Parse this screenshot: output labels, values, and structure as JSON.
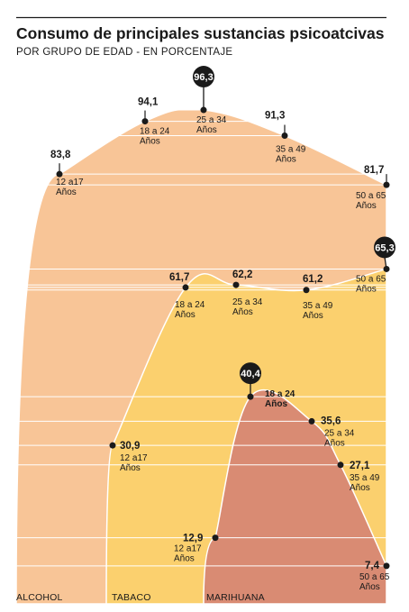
{
  "chart_data": {
    "type": "area",
    "title": "Consumo de principales sustancias psicoatcivas",
    "subtitle": "POR GRUPO DE EDAD - EN PORCENTAJE",
    "series": [
      {
        "name": "ALCOHOL",
        "color": "#f8c597",
        "points": [
          {
            "age": "12 a17",
            "age_line2": "Años",
            "value": 83.8,
            "value_label": "83,8"
          },
          {
            "age": "18 a 24",
            "age_line2": "Años",
            "value": 94.1,
            "value_label": "94,1"
          },
          {
            "age": "25 a 34",
            "age_line2": "Años",
            "value": 96.3,
            "value_label": "96,3",
            "highlight": true
          },
          {
            "age": "35 a 49",
            "age_line2": "Años",
            "value": 91.3,
            "value_label": "91,3"
          },
          {
            "age": "50 a 65",
            "age_line2": "Años",
            "value": 81.7,
            "value_label": "81,7"
          }
        ]
      },
      {
        "name": "TABACO",
        "color": "#fbd06e",
        "points": [
          {
            "age": "12 a17",
            "age_line2": "Años",
            "value": 30.9,
            "value_label": "30,9"
          },
          {
            "age": "18 a 24",
            "age_line2": "Años",
            "value": 61.7,
            "value_label": "61,7"
          },
          {
            "age": "25 a 34",
            "age_line2": "Años",
            "value": 62.2,
            "value_label": "62,2"
          },
          {
            "age": "35 a 49",
            "age_line2": "Años",
            "value": 61.2,
            "value_label": "61,2"
          },
          {
            "age": "50 a 65",
            "age_line2": "Años",
            "value": 65.3,
            "value_label": "65,3",
            "highlight": true
          }
        ]
      },
      {
        "name": "MARIHUANA",
        "color": "#d98b73",
        "points": [
          {
            "age": "12 a17",
            "age_line2": "Años",
            "value": 12.9,
            "value_label": "12,9"
          },
          {
            "age": "18 a 24",
            "age_line2": "Años",
            "value": 40.4,
            "value_label": "40,4",
            "highlight": true
          },
          {
            "age": "25 a 34",
            "age_line2": "Años",
            "value": 35.6,
            "value_label": "35,6"
          },
          {
            "age": "35 a 49",
            "age_line2": "Años",
            "value": 27.1,
            "value_label": "27,1"
          },
          {
            "age": "50 a 65",
            "age_line2": "Años",
            "value": 7.4,
            "value_label": "7,4"
          }
        ]
      }
    ],
    "grid": true,
    "colors": {
      "badge": "#1a1a1a",
      "dot": "#1a1a1a",
      "grid": "#ffffff",
      "title_rule": "#1a1a1a"
    }
  }
}
